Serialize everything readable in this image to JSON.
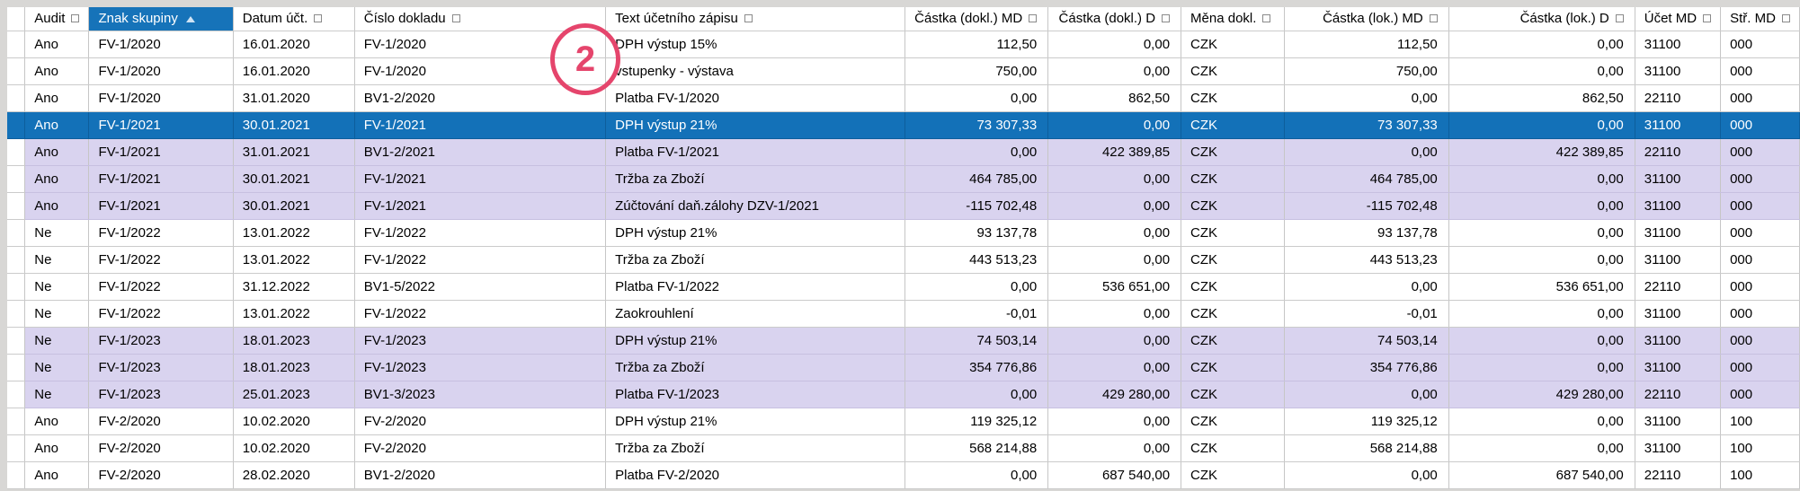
{
  "annotation": {
    "label": "2"
  },
  "colors": {
    "selection_blue": "#1371b8",
    "sorted_header_blue": "#1673b9",
    "group_highlight_lavender": "#d9d3ef",
    "annotation_pink": "#e5456c"
  },
  "icons": {
    "filter": "filter-square-icon",
    "sort": "sort-ascending-icon"
  },
  "columns": [
    {
      "id": "audit",
      "label": "Audit",
      "align": "left"
    },
    {
      "id": "znak-skupiny",
      "label": "Znak skupiny",
      "align": "left",
      "sorted": "ascending"
    },
    {
      "id": "datum-uct",
      "label": "Datum účt.",
      "align": "left"
    },
    {
      "id": "cislo-dokladu",
      "label": "Číslo dokladu",
      "align": "left"
    },
    {
      "id": "text-zapisu",
      "label": "Text účetního zápisu",
      "align": "left"
    },
    {
      "id": "castka-dokl-md",
      "label": "Částka (dokl.) MD",
      "align": "right"
    },
    {
      "id": "castka-dokl-d",
      "label": "Částka (dokl.) D",
      "align": "right"
    },
    {
      "id": "mena-dokl",
      "label": "Měna dokl.",
      "align": "left"
    },
    {
      "id": "castka-lok-md",
      "label": "Částka (lok.) MD",
      "align": "right"
    },
    {
      "id": "castka-lok-d",
      "label": "Částka (lok.) D",
      "align": "right"
    },
    {
      "id": "ucet-md",
      "label": "Účet MD",
      "align": "left"
    },
    {
      "id": "str-md",
      "label": "Stř. MD",
      "align": "left"
    }
  ],
  "rows": [
    {
      "state": "plain",
      "cells": [
        "Ano",
        "FV-1/2020",
        "16.01.2020",
        "FV-1/2020",
        "DPH výstup 15%",
        "112,50",
        "0,00",
        "CZK",
        "112,50",
        "0,00",
        "31100",
        "000"
      ]
    },
    {
      "state": "plain",
      "cells": [
        "Ano",
        "FV-1/2020",
        "16.01.2020",
        "FV-1/2020",
        "vstupenky - výstava",
        "750,00",
        "0,00",
        "CZK",
        "750,00",
        "0,00",
        "31100",
        "000"
      ]
    },
    {
      "state": "plain",
      "cells": [
        "Ano",
        "FV-1/2020",
        "31.01.2020",
        "BV1-2/2020",
        "Platba FV-1/2020",
        "0,00",
        "862,50",
        "CZK",
        "0,00",
        "862,50",
        "22110",
        "000"
      ]
    },
    {
      "state": "selected",
      "cells": [
        "Ano",
        "FV-1/2021",
        "30.01.2021",
        "FV-1/2021",
        "DPH výstup 21%",
        "73 307,33",
        "0,00",
        "CZK",
        "73 307,33",
        "0,00",
        "31100",
        "000"
      ]
    },
    {
      "state": "alt",
      "cells": [
        "Ano",
        "FV-1/2021",
        "31.01.2021",
        "BV1-2/2021",
        "Platba FV-1/2021",
        "0,00",
        "422 389,85",
        "CZK",
        "0,00",
        "422 389,85",
        "22110",
        "000"
      ]
    },
    {
      "state": "alt",
      "cells": [
        "Ano",
        "FV-1/2021",
        "30.01.2021",
        "FV-1/2021",
        "Tržba za Zboží",
        "464 785,00",
        "0,00",
        "CZK",
        "464 785,00",
        "0,00",
        "31100",
        "000"
      ]
    },
    {
      "state": "alt",
      "cells": [
        "Ano",
        "FV-1/2021",
        "30.01.2021",
        "FV-1/2021",
        "Zúčtování daň.zálohy DZV-1/2021",
        "-115 702,48",
        "0,00",
        "CZK",
        "-115 702,48",
        "0,00",
        "31100",
        "000"
      ]
    },
    {
      "state": "plain",
      "cells": [
        "Ne",
        "FV-1/2022",
        "13.01.2022",
        "FV-1/2022",
        "DPH výstup 21%",
        "93 137,78",
        "0,00",
        "CZK",
        "93 137,78",
        "0,00",
        "31100",
        "000"
      ]
    },
    {
      "state": "plain",
      "cells": [
        "Ne",
        "FV-1/2022",
        "13.01.2022",
        "FV-1/2022",
        "Tržba za Zboží",
        "443 513,23",
        "0,00",
        "CZK",
        "443 513,23",
        "0,00",
        "31100",
        "000"
      ]
    },
    {
      "state": "plain",
      "cells": [
        "Ne",
        "FV-1/2022",
        "31.12.2022",
        "BV1-5/2022",
        "Platba FV-1/2022",
        "0,00",
        "536 651,00",
        "CZK",
        "0,00",
        "536 651,00",
        "22110",
        "000"
      ]
    },
    {
      "state": "plain",
      "cells": [
        "Ne",
        "FV-1/2022",
        "13.01.2022",
        "FV-1/2022",
        "Zaokrouhlení",
        "-0,01",
        "0,00",
        "CZK",
        "-0,01",
        "0,00",
        "31100",
        "000"
      ]
    },
    {
      "state": "alt",
      "cells": [
        "Ne",
        "FV-1/2023",
        "18.01.2023",
        "FV-1/2023",
        "DPH výstup 21%",
        "74 503,14",
        "0,00",
        "CZK",
        "74 503,14",
        "0,00",
        "31100",
        "000"
      ]
    },
    {
      "state": "alt",
      "cells": [
        "Ne",
        "FV-1/2023",
        "18.01.2023",
        "FV-1/2023",
        "Tržba za Zboží",
        "354 776,86",
        "0,00",
        "CZK",
        "354 776,86",
        "0,00",
        "31100",
        "000"
      ]
    },
    {
      "state": "alt",
      "cells": [
        "Ne",
        "FV-1/2023",
        "25.01.2023",
        "BV1-3/2023",
        "Platba FV-1/2023",
        "0,00",
        "429 280,00",
        "CZK",
        "0,00",
        "429 280,00",
        "22110",
        "000"
      ]
    },
    {
      "state": "plain",
      "cells": [
        "Ano",
        "FV-2/2020",
        "10.02.2020",
        "FV-2/2020",
        "DPH výstup 21%",
        "119 325,12",
        "0,00",
        "CZK",
        "119 325,12",
        "0,00",
        "31100",
        "100"
      ]
    },
    {
      "state": "plain",
      "cells": [
        "Ano",
        "FV-2/2020",
        "10.02.2020",
        "FV-2/2020",
        "Tržba za Zboží",
        "568 214,88",
        "0,00",
        "CZK",
        "568 214,88",
        "0,00",
        "31100",
        "100"
      ]
    },
    {
      "state": "plain",
      "cells": [
        "Ano",
        "FV-2/2020",
        "28.02.2020",
        "BV1-2/2020",
        "Platba FV-2/2020",
        "0,00",
        "687 540,00",
        "CZK",
        "0,00",
        "687 540,00",
        "22110",
        "100"
      ]
    }
  ]
}
